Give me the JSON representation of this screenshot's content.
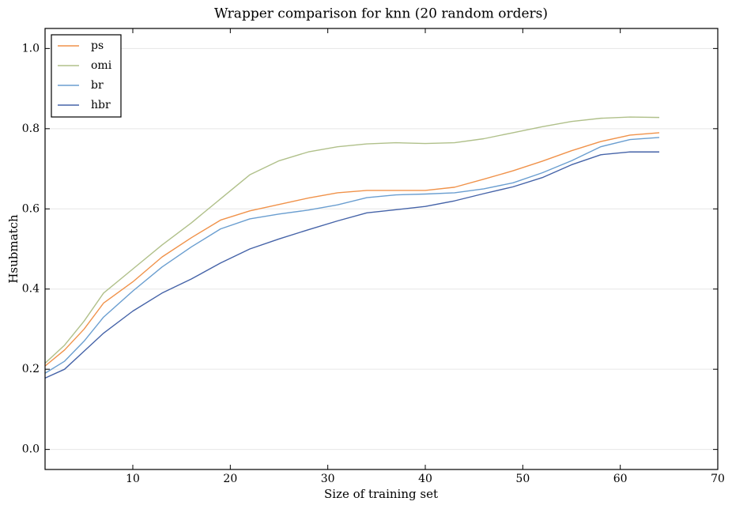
{
  "chart_data": {
    "type": "line",
    "title": "Wrapper comparison for knn (20 random orders)",
    "x_label": "Size of training set",
    "y_label": "Hsubmatch",
    "x": [
      1,
      3,
      5,
      7,
      10,
      13,
      16,
      19,
      22,
      25,
      28,
      31,
      34,
      37,
      40,
      43,
      46,
      49,
      52,
      55,
      58,
      61,
      64
    ],
    "series": [
      {
        "name": "ps",
        "color": "#f0924a",
        "values": [
          0.208,
          0.248,
          0.3,
          0.365,
          0.418,
          0.48,
          0.528,
          0.572,
          0.595,
          0.611,
          0.627,
          0.64,
          0.646,
          0.646,
          0.646,
          0.654,
          0.674,
          0.695,
          0.719,
          0.745,
          0.768,
          0.784,
          0.79
        ]
      },
      {
        "name": "omi",
        "color": "#b0c08a",
        "values": [
          0.215,
          0.26,
          0.32,
          0.39,
          0.45,
          0.51,
          0.565,
          0.625,
          0.685,
          0.72,
          0.742,
          0.755,
          0.762,
          0.765,
          0.763,
          0.765,
          0.775,
          0.79,
          0.805,
          0.818,
          0.826,
          0.829,
          0.828
        ]
      },
      {
        "name": "br",
        "color": "#6a9ed0",
        "values": [
          0.19,
          0.22,
          0.27,
          0.33,
          0.395,
          0.455,
          0.505,
          0.55,
          0.575,
          0.587,
          0.597,
          0.61,
          0.628,
          0.635,
          0.637,
          0.64,
          0.65,
          0.665,
          0.69,
          0.72,
          0.755,
          0.773,
          0.778
        ]
      },
      {
        "name": "hbr",
        "color": "#4563a8",
        "values": [
          0.178,
          0.2,
          0.245,
          0.29,
          0.345,
          0.39,
          0.425,
          0.465,
          0.5,
          0.525,
          0.548,
          0.57,
          0.59,
          0.598,
          0.606,
          0.62,
          0.638,
          0.655,
          0.678,
          0.71,
          0.735,
          0.742,
          0.742
        ]
      }
    ],
    "xlim": [
      1,
      70
    ],
    "xticks": [
      10,
      20,
      30,
      40,
      50,
      60,
      70
    ],
    "ylim": [
      -0.05,
      1.05
    ],
    "yticks": [
      {
        "value": 0,
        "label": "0.0"
      },
      0.2,
      0.4,
      0.6,
      0.8,
      {
        "value": 1,
        "label": "1.0"
      }
    ],
    "grid": true,
    "legend": "upper-left"
  }
}
